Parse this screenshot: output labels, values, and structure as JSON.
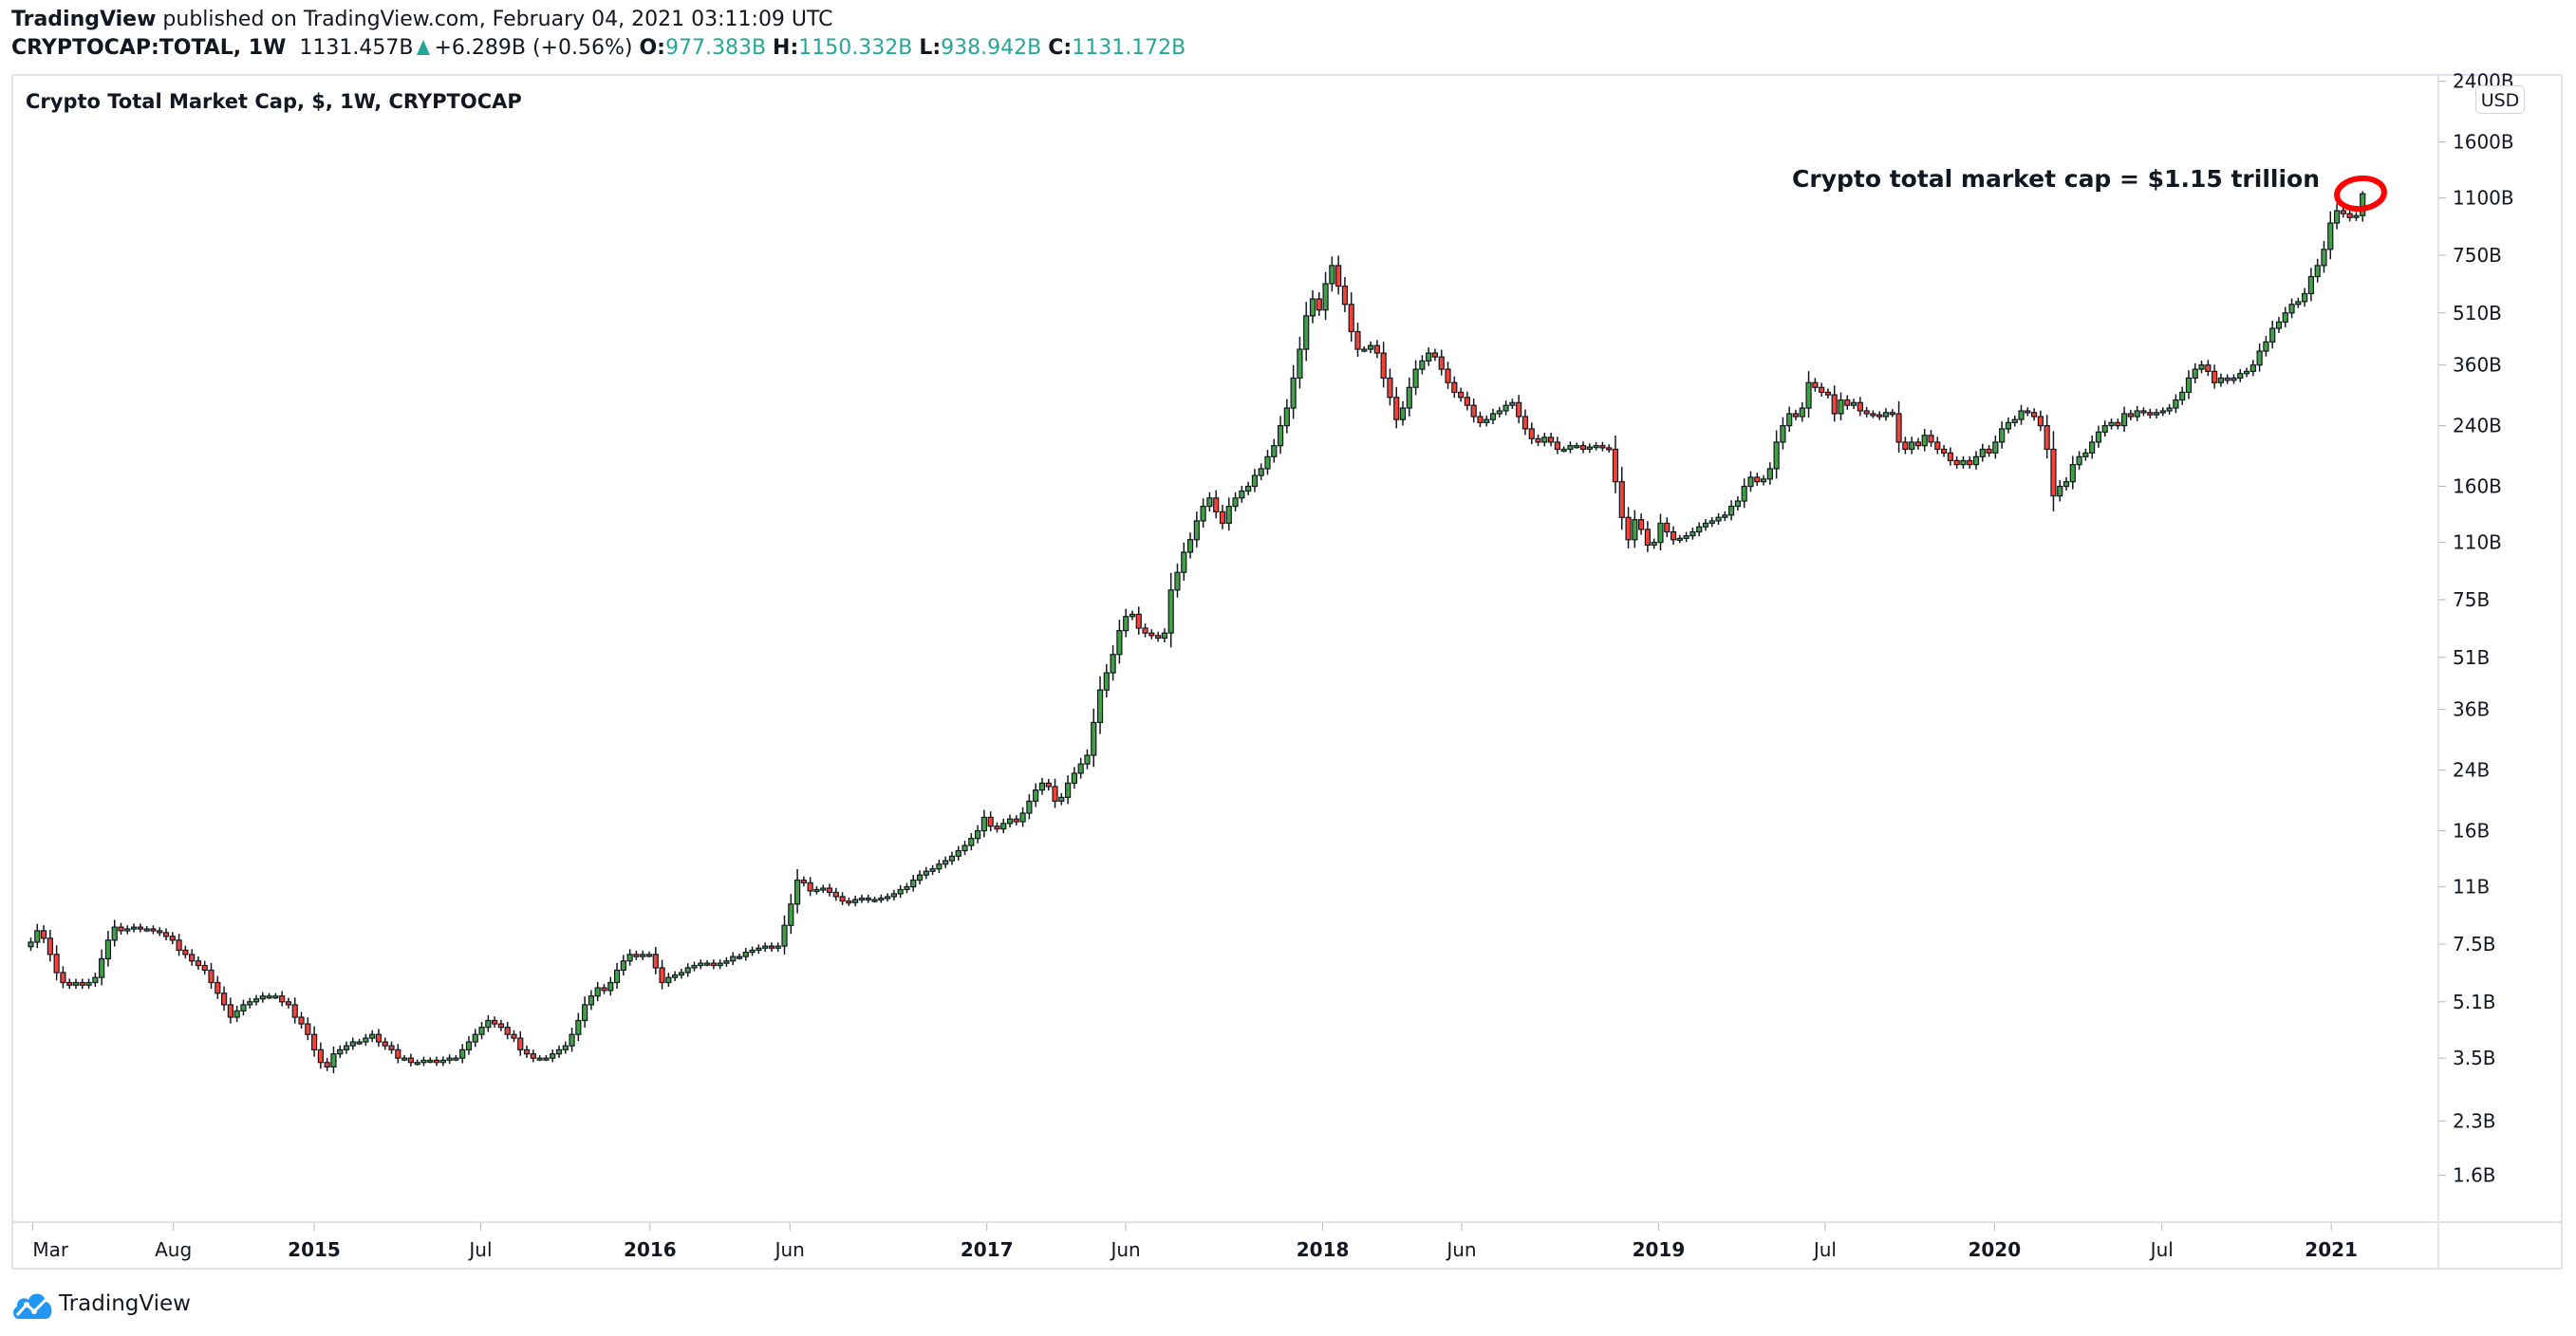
{
  "header": {
    "brand": "TradingView",
    "published": "published on TradingView.com, February 04, 2021 03:11:09 UTC",
    "symbol": "CRYPTOCAP:TOTAL, 1W",
    "last": "1131.457B",
    "change": "+6.289B (+0.56%)",
    "o_label": "O:",
    "o": "977.383B",
    "h_label": "H:",
    "h": "1150.332B",
    "l_label": "L:",
    "l": "938.942B",
    "c_label": "C:",
    "c": "1131.172B"
  },
  "footer": {
    "logo_text": "TradingView",
    "logo_icon": "tradingview-cloud-icon"
  },
  "colors": {
    "up": "#43a047",
    "down": "#f44336",
    "accent": "#26a69a",
    "annotation": "#ff0000",
    "brand": "#2196f3"
  },
  "chart_data": {
    "type": "candlestick",
    "title": "Crypto Total Market Cap, $, 1W, CRYPTOCAP",
    "currency_button": "USD",
    "y_scale": "log",
    "ylim": [
      1.35,
      2500
    ],
    "grid": false,
    "interval": "1W",
    "first_candle_date": "2014-02-24",
    "last_candle": {
      "open": 977.383,
      "high": 1150.332,
      "low": 938.942,
      "close": 1131.172
    },
    "closes": [
      7.6,
      8.2,
      7.8,
      7.0,
      6.2,
      5.8,
      5.7,
      5.8,
      5.7,
      5.8,
      6.0,
      6.8,
      7.7,
      8.4,
      8.2,
      8.3,
      8.4,
      8.3,
      8.3,
      8.2,
      8.1,
      7.9,
      7.7,
      7.2,
      7.0,
      6.7,
      6.5,
      6.3,
      5.8,
      5.4,
      5.0,
      4.6,
      4.8,
      5.0,
      5.1,
      5.2,
      5.3,
      5.3,
      5.3,
      5.1,
      5.0,
      4.6,
      4.4,
      4.1,
      3.7,
      3.4,
      3.3,
      3.6,
      3.7,
      3.8,
      3.9,
      3.9,
      4.0,
      4.1,
      3.9,
      3.8,
      3.7,
      3.5,
      3.5,
      3.4,
      3.4,
      3.45,
      3.45,
      3.4,
      3.45,
      3.5,
      3.5,
      3.7,
      3.9,
      4.1,
      4.3,
      4.5,
      4.4,
      4.3,
      4.1,
      4.0,
      3.7,
      3.6,
      3.5,
      3.5,
      3.5,
      3.6,
      3.7,
      3.8,
      4.1,
      4.5,
      5.0,
      5.3,
      5.6,
      5.5,
      5.8,
      6.3,
      6.7,
      7.0,
      6.9,
      7.0,
      7.0,
      6.4,
      5.8,
      6.0,
      6.1,
      6.2,
      6.4,
      6.5,
      6.6,
      6.6,
      6.5,
      6.6,
      6.7,
      6.9,
      6.9,
      7.1,
      7.2,
      7.3,
      7.4,
      7.3,
      7.4,
      8.5,
      9.8,
      11.5,
      11.3,
      10.7,
      10.8,
      10.9,
      10.6,
      10.3,
      10.0,
      9.9,
      10.1,
      10.2,
      10.1,
      10.1,
      10.2,
      10.3,
      10.5,
      10.8,
      11.0,
      11.5,
      11.9,
      12.2,
      12.4,
      12.8,
      13.1,
      13.5,
      14.0,
      14.5,
      15.2,
      16.0,
      17.5,
      16.5,
      16.2,
      16.8,
      17.3,
      17.0,
      18.0,
      19.5,
      21.0,
      22.0,
      21.5,
      19.5,
      20.0,
      22.0,
      23.5,
      25.0,
      26.5,
      33,
      41,
      46,
      52,
      61,
      67,
      68,
      62,
      60,
      59,
      58,
      60,
      80,
      90,
      103,
      112,
      127,
      140,
      148,
      135,
      125,
      140,
      148,
      155,
      160,
      172,
      180,
      195,
      210,
      240,
      270,
      330,
      400,
      500,
      560,
      520,
      620,
      700,
      610,
      540,
      450,
      400,
      400,
      410,
      390,
      330,
      290,
      250,
      270,
      310,
      350,
      370,
      390,
      380,
      350,
      320,
      300,
      290,
      275,
      255,
      245,
      250,
      260,
      265,
      275,
      280,
      255,
      235,
      220,
      215,
      222,
      215,
      205,
      205,
      210,
      210,
      205,
      208,
      210,
      207,
      205,
      165,
      130,
      112,
      128,
      120,
      108,
      110,
      125,
      118,
      112,
      113,
      115,
      118,
      122,
      125,
      127,
      130,
      132,
      140,
      145,
      160,
      170,
      165,
      168,
      180,
      215,
      240,
      260,
      255,
      270,
      320,
      310,
      300,
      295,
      260,
      285,
      275,
      280,
      265,
      260,
      258,
      255,
      262,
      260,
      215,
      205,
      215,
      210,
      225,
      215,
      205,
      200,
      190,
      185,
      190,
      185,
      195,
      205,
      200,
      215,
      235,
      245,
      250,
      265,
      262,
      255,
      240,
      205,
      150,
      160,
      165,
      185,
      195,
      200,
      215,
      230,
      240,
      245,
      240,
      260,
      255,
      265,
      262,
      258,
      262,
      265,
      270,
      285,
      300,
      330,
      350,
      360,
      345,
      320,
      330,
      325,
      330,
      340,
      345,
      360,
      395,
      420,
      460,
      480,
      510,
      540,
      550,
      580,
      650,
      700,
      780,
      930,
      1010,
      990,
      965,
      977.383,
      1131.172
    ],
    "y_ticks": [
      {
        "label": "2400B",
        "value": 2400
      },
      {
        "label": "1600B",
        "value": 1600
      },
      {
        "label": "1100B",
        "value": 1100
      },
      {
        "label": "750B",
        "value": 750
      },
      {
        "label": "510B",
        "value": 510
      },
      {
        "label": "360B",
        "value": 360
      },
      {
        "label": "240B",
        "value": 240
      },
      {
        "label": "160B",
        "value": 160
      },
      {
        "label": "110B",
        "value": 110
      },
      {
        "label": "75B",
        "value": 75
      },
      {
        "label": "51B",
        "value": 51
      },
      {
        "label": "36B",
        "value": 36
      },
      {
        "label": "24B",
        "value": 24
      },
      {
        "label": "16B",
        "value": 16
      },
      {
        "label": "11B",
        "value": 11
      },
      {
        "label": "7.5B",
        "value": 7.5
      },
      {
        "label": "5.1B",
        "value": 5.1
      },
      {
        "label": "3.5B",
        "value": 3.5
      },
      {
        "label": "2.3B",
        "value": 2.3
      },
      {
        "label": "1.6B",
        "value": 1.6
      }
    ],
    "x_ticks": [
      {
        "label": "Mar",
        "date": "2014-03-01",
        "major": false
      },
      {
        "label": "Aug",
        "date": "2014-08-01",
        "major": false
      },
      {
        "label": "2015",
        "date": "2015-01-01",
        "major": true
      },
      {
        "label": "Jul",
        "date": "2015-07-01",
        "major": false
      },
      {
        "label": "2016",
        "date": "2016-01-01",
        "major": true
      },
      {
        "label": "Jun",
        "date": "2016-06-01",
        "major": false
      },
      {
        "label": "2017",
        "date": "2017-01-01",
        "major": true
      },
      {
        "label": "Jun",
        "date": "2017-06-01",
        "major": false
      },
      {
        "label": "2018",
        "date": "2018-01-01",
        "major": true
      },
      {
        "label": "Jun",
        "date": "2018-06-01",
        "major": false
      },
      {
        "label": "2019",
        "date": "2019-01-01",
        "major": true
      },
      {
        "label": "Jul",
        "date": "2019-07-01",
        "major": false
      },
      {
        "label": "2020",
        "date": "2020-01-01",
        "major": true
      },
      {
        "label": "Jul",
        "date": "2020-07-01",
        "major": false
      },
      {
        "label": "2021",
        "date": "2021-01-01",
        "major": true
      }
    ],
    "annotation": {
      "text": "Crypto total market cap = $1.15 trillion"
    }
  }
}
